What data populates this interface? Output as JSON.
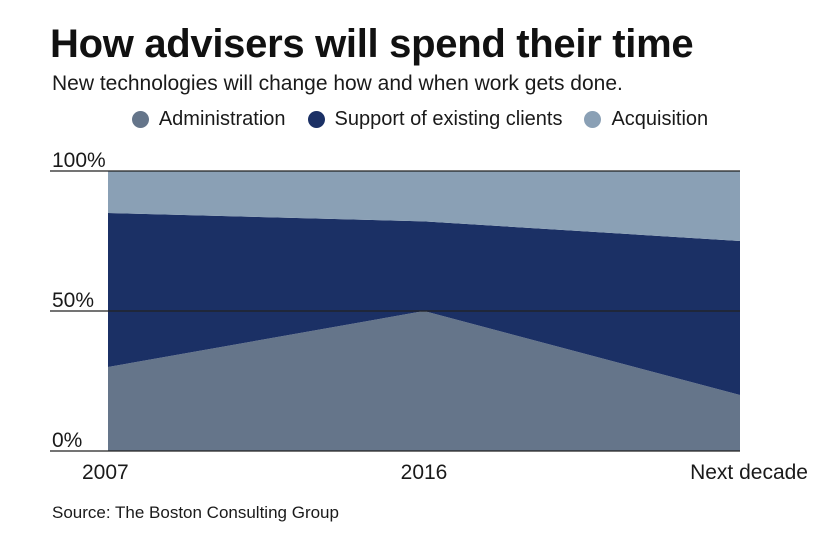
{
  "title": "How advisers will spend their time",
  "subtitle": "New technologies will change how and when work gets done.",
  "source": "Source: The Boston Consulting Group",
  "chart_data": {
    "type": "area",
    "stacked": true,
    "categories": [
      "2007",
      "2016",
      "Next decade"
    ],
    "series": [
      {
        "name": "Administration",
        "values": [
          30,
          50,
          20
        ],
        "color": "#65758a"
      },
      {
        "name": "Support of existing clients",
        "values": [
          55,
          32,
          55
        ],
        "color": "#1b3065"
      },
      {
        "name": "Acquisition",
        "values": [
          15,
          18,
          25
        ],
        "color": "#8aa0b5"
      }
    ],
    "ylim": [
      0,
      100
    ],
    "yticks": [
      "0%",
      "50%",
      "100%"
    ],
    "legend_position": "top-center",
    "grid": false
  }
}
